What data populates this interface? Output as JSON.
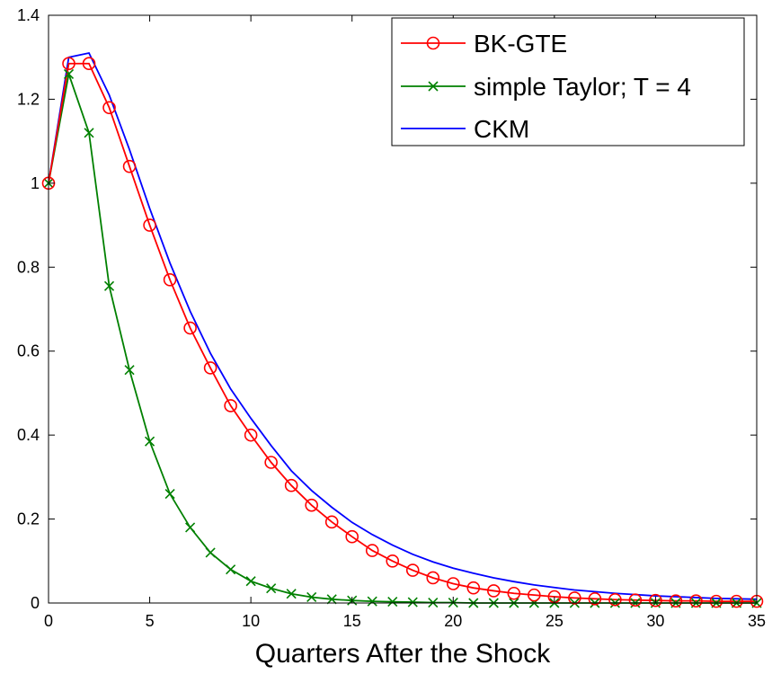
{
  "chart_data": {
    "type": "line",
    "title": "",
    "xlabel": "Quarters After the Shock",
    "ylabel": "",
    "xlim": [
      0,
      35
    ],
    "ylim": [
      0,
      1.4
    ],
    "xticks": [
      0,
      5,
      10,
      15,
      20,
      25,
      30,
      35
    ],
    "yticks": [
      0,
      0.2,
      0.4,
      0.6,
      0.8,
      1,
      1.2,
      1.4
    ],
    "xtick_labels": [
      "0",
      "5",
      "10",
      "15",
      "20",
      "25",
      "30",
      "35"
    ],
    "ytick_labels": [
      "0",
      "0.2",
      "0.4",
      "0.6",
      "0.8",
      "1",
      "1.2",
      "1.4"
    ],
    "grid": false,
    "legend_position": "top-right",
    "x": [
      0,
      1,
      2,
      3,
      4,
      5,
      6,
      7,
      8,
      9,
      10,
      11,
      12,
      13,
      14,
      15,
      16,
      17,
      18,
      19,
      20,
      21,
      22,
      23,
      24,
      25,
      26,
      27,
      28,
      29,
      30,
      31,
      32,
      33,
      34,
      35
    ],
    "series": [
      {
        "name": "BK-GTE",
        "color": "#ff0000",
        "marker": "circle",
        "values": [
          1.0,
          1.285,
          1.285,
          1.18,
          1.04,
          0.9,
          0.77,
          0.655,
          0.56,
          0.47,
          0.4,
          0.335,
          0.28,
          0.233,
          0.193,
          0.158,
          0.125,
          0.1,
          0.078,
          0.06,
          0.046,
          0.036,
          0.029,
          0.023,
          0.019,
          0.015,
          0.012,
          0.01,
          0.008,
          0.007,
          0.006,
          0.005,
          0.005,
          0.004,
          0.004,
          0.004
        ]
      },
      {
        "name": "simple Taylor; T = 4",
        "color": "#008000",
        "marker": "x",
        "values": [
          1.0,
          1.26,
          1.12,
          0.755,
          0.555,
          0.385,
          0.26,
          0.18,
          0.12,
          0.08,
          0.052,
          0.035,
          0.022,
          0.014,
          0.009,
          0.006,
          0.004,
          0.003,
          0.002,
          0.001,
          0.001,
          0.0,
          0.0,
          0.0,
          0.0,
          0.0,
          0.0,
          0.0,
          0.0,
          0.0,
          0.0,
          0.0,
          0.0,
          0.0,
          0.0,
          0.0
        ]
      },
      {
        "name": "CKM",
        "color": "#0000ff",
        "marker": "none",
        "values": [
          1.0,
          1.3,
          1.31,
          1.21,
          1.08,
          0.94,
          0.81,
          0.695,
          0.595,
          0.51,
          0.44,
          0.375,
          0.315,
          0.268,
          0.228,
          0.192,
          0.163,
          0.138,
          0.116,
          0.098,
          0.083,
          0.071,
          0.06,
          0.051,
          0.043,
          0.037,
          0.031,
          0.027,
          0.023,
          0.02,
          0.017,
          0.015,
          0.013,
          0.011,
          0.01,
          0.009
        ]
      }
    ]
  }
}
